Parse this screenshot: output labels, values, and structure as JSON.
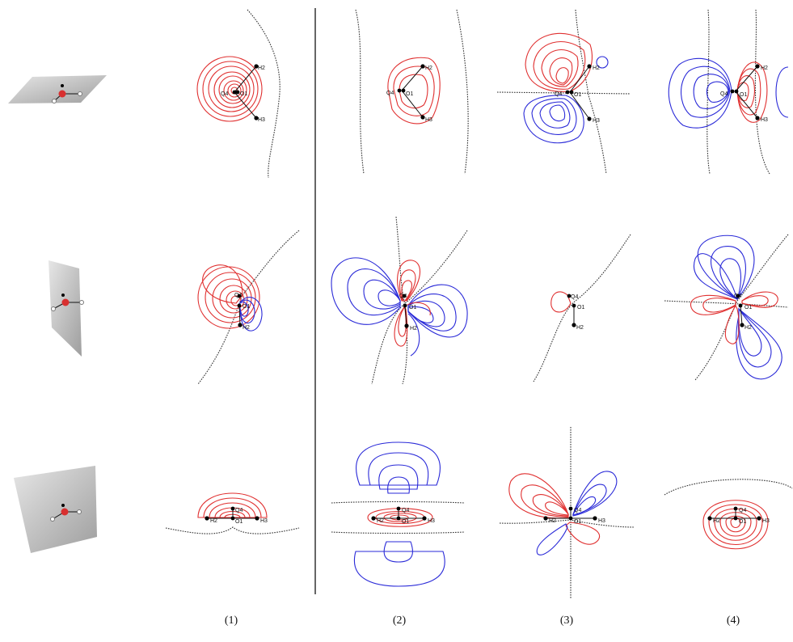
{
  "figure": {
    "column_labels": [
      "(1)",
      "(2)",
      "(3)",
      "(4)"
    ],
    "atom_labels": {
      "row1": [
        "H2",
        "Q4",
        "O1",
        "H3"
      ],
      "row2": [
        "Q4",
        "O1",
        "H2"
      ],
      "row3": [
        "Q4",
        "H2",
        "O1",
        "H3"
      ]
    },
    "colors": {
      "positive": "#e03030",
      "negative": "#2a2ad8",
      "nodal": "#333333",
      "plane": "#bdbdbd"
    }
  }
}
